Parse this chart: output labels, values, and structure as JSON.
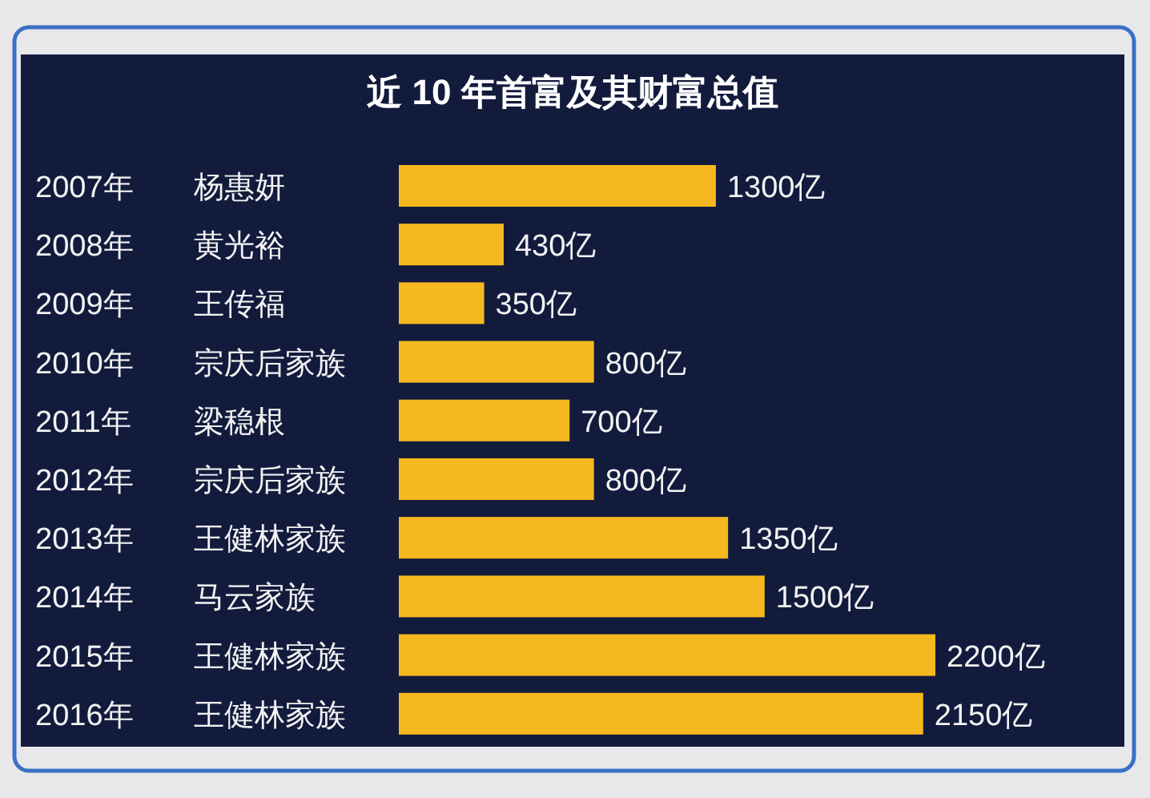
{
  "chart_data": {
    "type": "bar",
    "orientation": "horizontal",
    "title": "近 10 年首富及其财富总值",
    "categories": [
      "2007年 杨惠妍",
      "2008年 黄光裕",
      "2009年 王传福",
      "2010年 宗庆后家族",
      "2011年 梁稳根",
      "2012年 宗庆后家族",
      "2013年 王健林家族",
      "2014年 马云家族",
      "2015年 王健林家族",
      "2016年 王健林家族"
    ],
    "values": [
      1300,
      430,
      350,
      800,
      700,
      800,
      1350,
      1500,
      2200,
      2150
    ],
    "value_labels": [
      "1300亿",
      "430亿",
      "350亿",
      "800亿",
      "700亿",
      "800亿",
      "1350亿",
      "1500亿",
      "2200亿",
      "2150亿"
    ],
    "color": "#f5b81e"
  }
}
